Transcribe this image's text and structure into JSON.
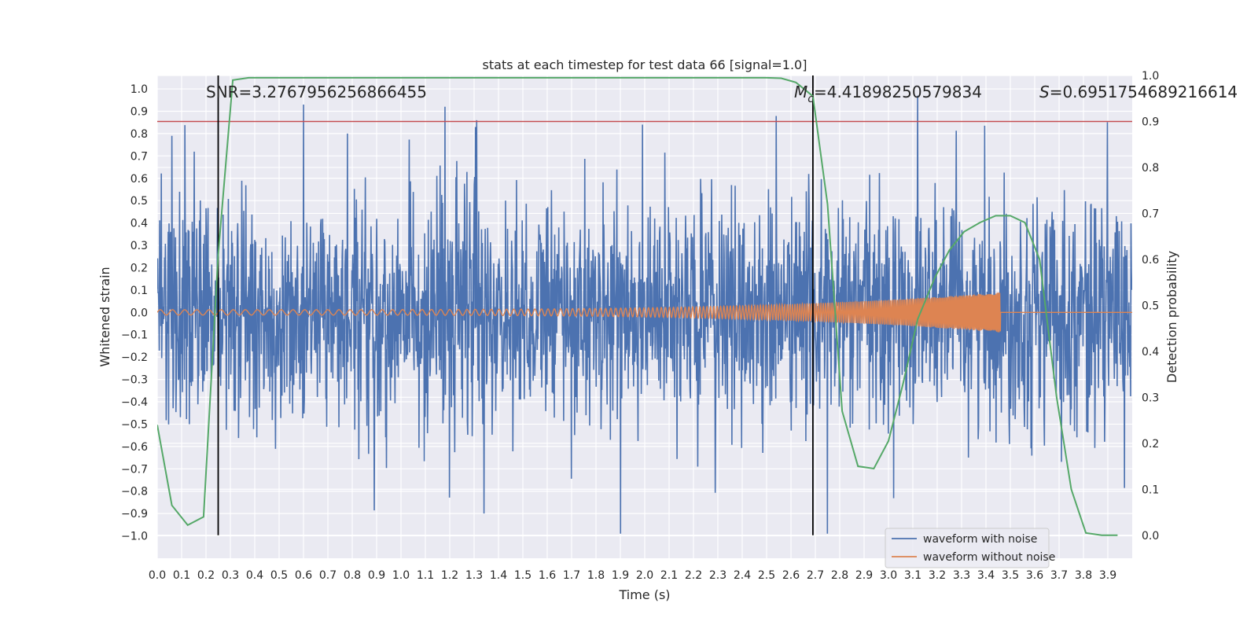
{
  "chart_data": {
    "type": "line",
    "title": "stats at each timestep for test data 66 [signal=1.0]",
    "xlabel": "Time (s)",
    "ylabel_left": "Whitened strain",
    "ylabel_right": "Detection probability",
    "xlim": [
      0.0,
      4.0
    ],
    "ylim_left": [
      -1.1,
      1.06
    ],
    "ylim_right": [
      -0.05,
      1.0
    ],
    "x_ticks": [
      "0.0",
      "0.1",
      "0.2",
      "0.3",
      "0.4",
      "0.5",
      "0.6",
      "0.7",
      "0.8",
      "0.9",
      "1.0",
      "1.1",
      "1.2",
      "1.3",
      "1.4",
      "1.5",
      "1.6",
      "1.7",
      "1.8",
      "1.9",
      "2.0",
      "2.1",
      "2.2",
      "2.3",
      "2.4",
      "2.5",
      "2.6",
      "2.7",
      "2.8",
      "2.9",
      "3.0",
      "3.1",
      "3.2",
      "3.3",
      "3.4",
      "3.5",
      "3.6",
      "3.7",
      "3.8",
      "3.9"
    ],
    "y_ticks_left": [
      "1.0",
      "0.9",
      "0.8",
      "0.7",
      "0.6",
      "0.5",
      "0.4",
      "0.3",
      "0.2",
      "0.1",
      "0.0",
      "−0.1",
      "−0.2",
      "−0.3",
      "−0.4",
      "−0.5",
      "−0.6",
      "−0.7",
      "−0.8",
      "−0.9",
      "−1.0"
    ],
    "y_ticks_right": [
      "1.0",
      "0.9",
      "0.8",
      "0.7",
      "0.6",
      "0.5",
      "0.4",
      "0.3",
      "0.2",
      "0.1",
      "0.0"
    ],
    "grid": true,
    "legend_position": "lower-right",
    "annotations": {
      "snr": "SNR=3.2767956256866455",
      "mc_symbol": "M",
      "mc_sub": "c",
      "mc_value": "=4.41898250579834",
      "s_symbol": "S",
      "s_value": "=0.6951754689216614"
    },
    "vertical_markers": [
      0.25,
      2.69
    ],
    "threshold_line": {
      "axis": "right",
      "y": 0.9,
      "color": "#c44e52"
    },
    "series": [
      {
        "name": "waveform with noise",
        "axis": "left",
        "color": "#4c72b0",
        "kind": "noise",
        "x_range": [
          0.0,
          4.0
        ],
        "spikes": [
          [
            0.06,
            0.79
          ],
          [
            0.6,
            0.93
          ],
          [
            0.78,
            0.8
          ],
          [
            1.18,
            0.92
          ],
          [
            1.31,
            0.86
          ],
          [
            1.9,
            -0.99
          ],
          [
            1.99,
            0.84
          ],
          [
            2.75,
            -0.99
          ],
          [
            3.12,
            0.97
          ],
          [
            1.34,
            -0.9
          ]
        ]
      },
      {
        "name": "waveform without noise",
        "axis": "left",
        "color": "#dd8452",
        "kind": "chirp",
        "x_range": [
          0.0,
          3.46
        ],
        "amplitude_start": 0.012,
        "amplitude_end": 0.09
      },
      {
        "axis": "right",
        "color": "#55a868",
        "kind": "detection_probability",
        "x": [
          0.0,
          0.06,
          0.125,
          0.19,
          0.25,
          0.31,
          0.375,
          0.44,
          0.5,
          1.0,
          1.5,
          2.0,
          2.5,
          2.56,
          2.62,
          2.69,
          2.75,
          2.81,
          2.875,
          2.94,
          3.0,
          3.06,
          3.12,
          3.19,
          3.25,
          3.31,
          3.375,
          3.44,
          3.5,
          3.56,
          3.62,
          3.69,
          3.75,
          3.81,
          3.875,
          3.94
        ],
        "y": [
          0.24,
          0.065,
          0.022,
          0.04,
          0.61,
          0.99,
          0.995,
          0.995,
          0.995,
          0.995,
          0.995,
          0.995,
          0.995,
          0.994,
          0.985,
          0.955,
          0.72,
          0.27,
          0.15,
          0.145,
          0.205,
          0.33,
          0.47,
          0.56,
          0.62,
          0.66,
          0.68,
          0.695,
          0.695,
          0.68,
          0.6,
          0.3,
          0.1,
          0.005,
          0.0,
          0.0
        ]
      }
    ]
  }
}
